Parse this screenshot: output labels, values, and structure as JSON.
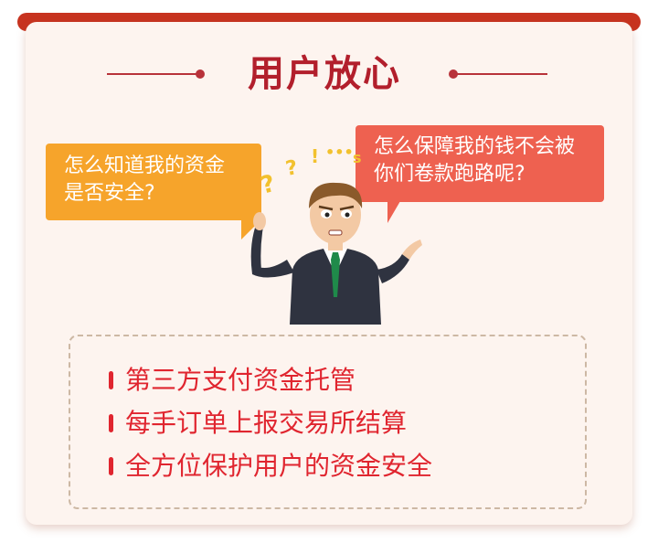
{
  "title": "用户放心",
  "bubbles": {
    "left": {
      "line1": "怎么知道我的资金",
      "line2": "是否安全?"
    },
    "right": {
      "line1": "怎么保障我的钱不会被",
      "line2": "你们卷款跑路呢?"
    }
  },
  "features": [
    "第三方支付资金托管",
    "每手订单上报交易所结算",
    "全方位保护用户的资金安全"
  ],
  "colors": {
    "accent_red": "#c7331f",
    "title_red": "#b21f2c",
    "list_red": "#e0252f",
    "bubble_orange": "#f6a42b",
    "bubble_coral": "#ee6150",
    "card_bg": "#fdf4ef"
  }
}
